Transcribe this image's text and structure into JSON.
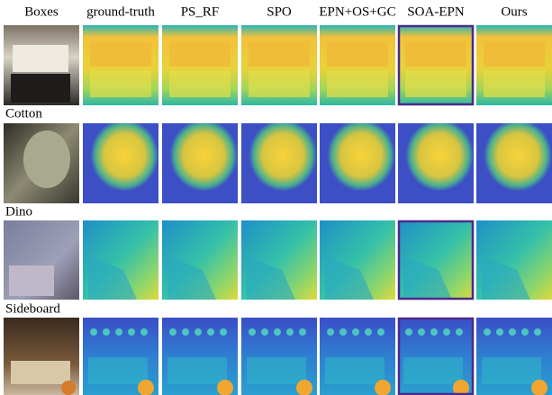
{
  "header": {
    "columns": [
      "ground-truth",
      "PS_RF",
      "SPO",
      "EPN+OS+GC",
      "SOA-EPN",
      "Ours"
    ]
  },
  "rows": [
    {
      "label": "Boxes"
    },
    {
      "label": "Cotton"
    },
    {
      "label": "Dino"
    },
    {
      "label": "Sideboard"
    }
  ]
}
